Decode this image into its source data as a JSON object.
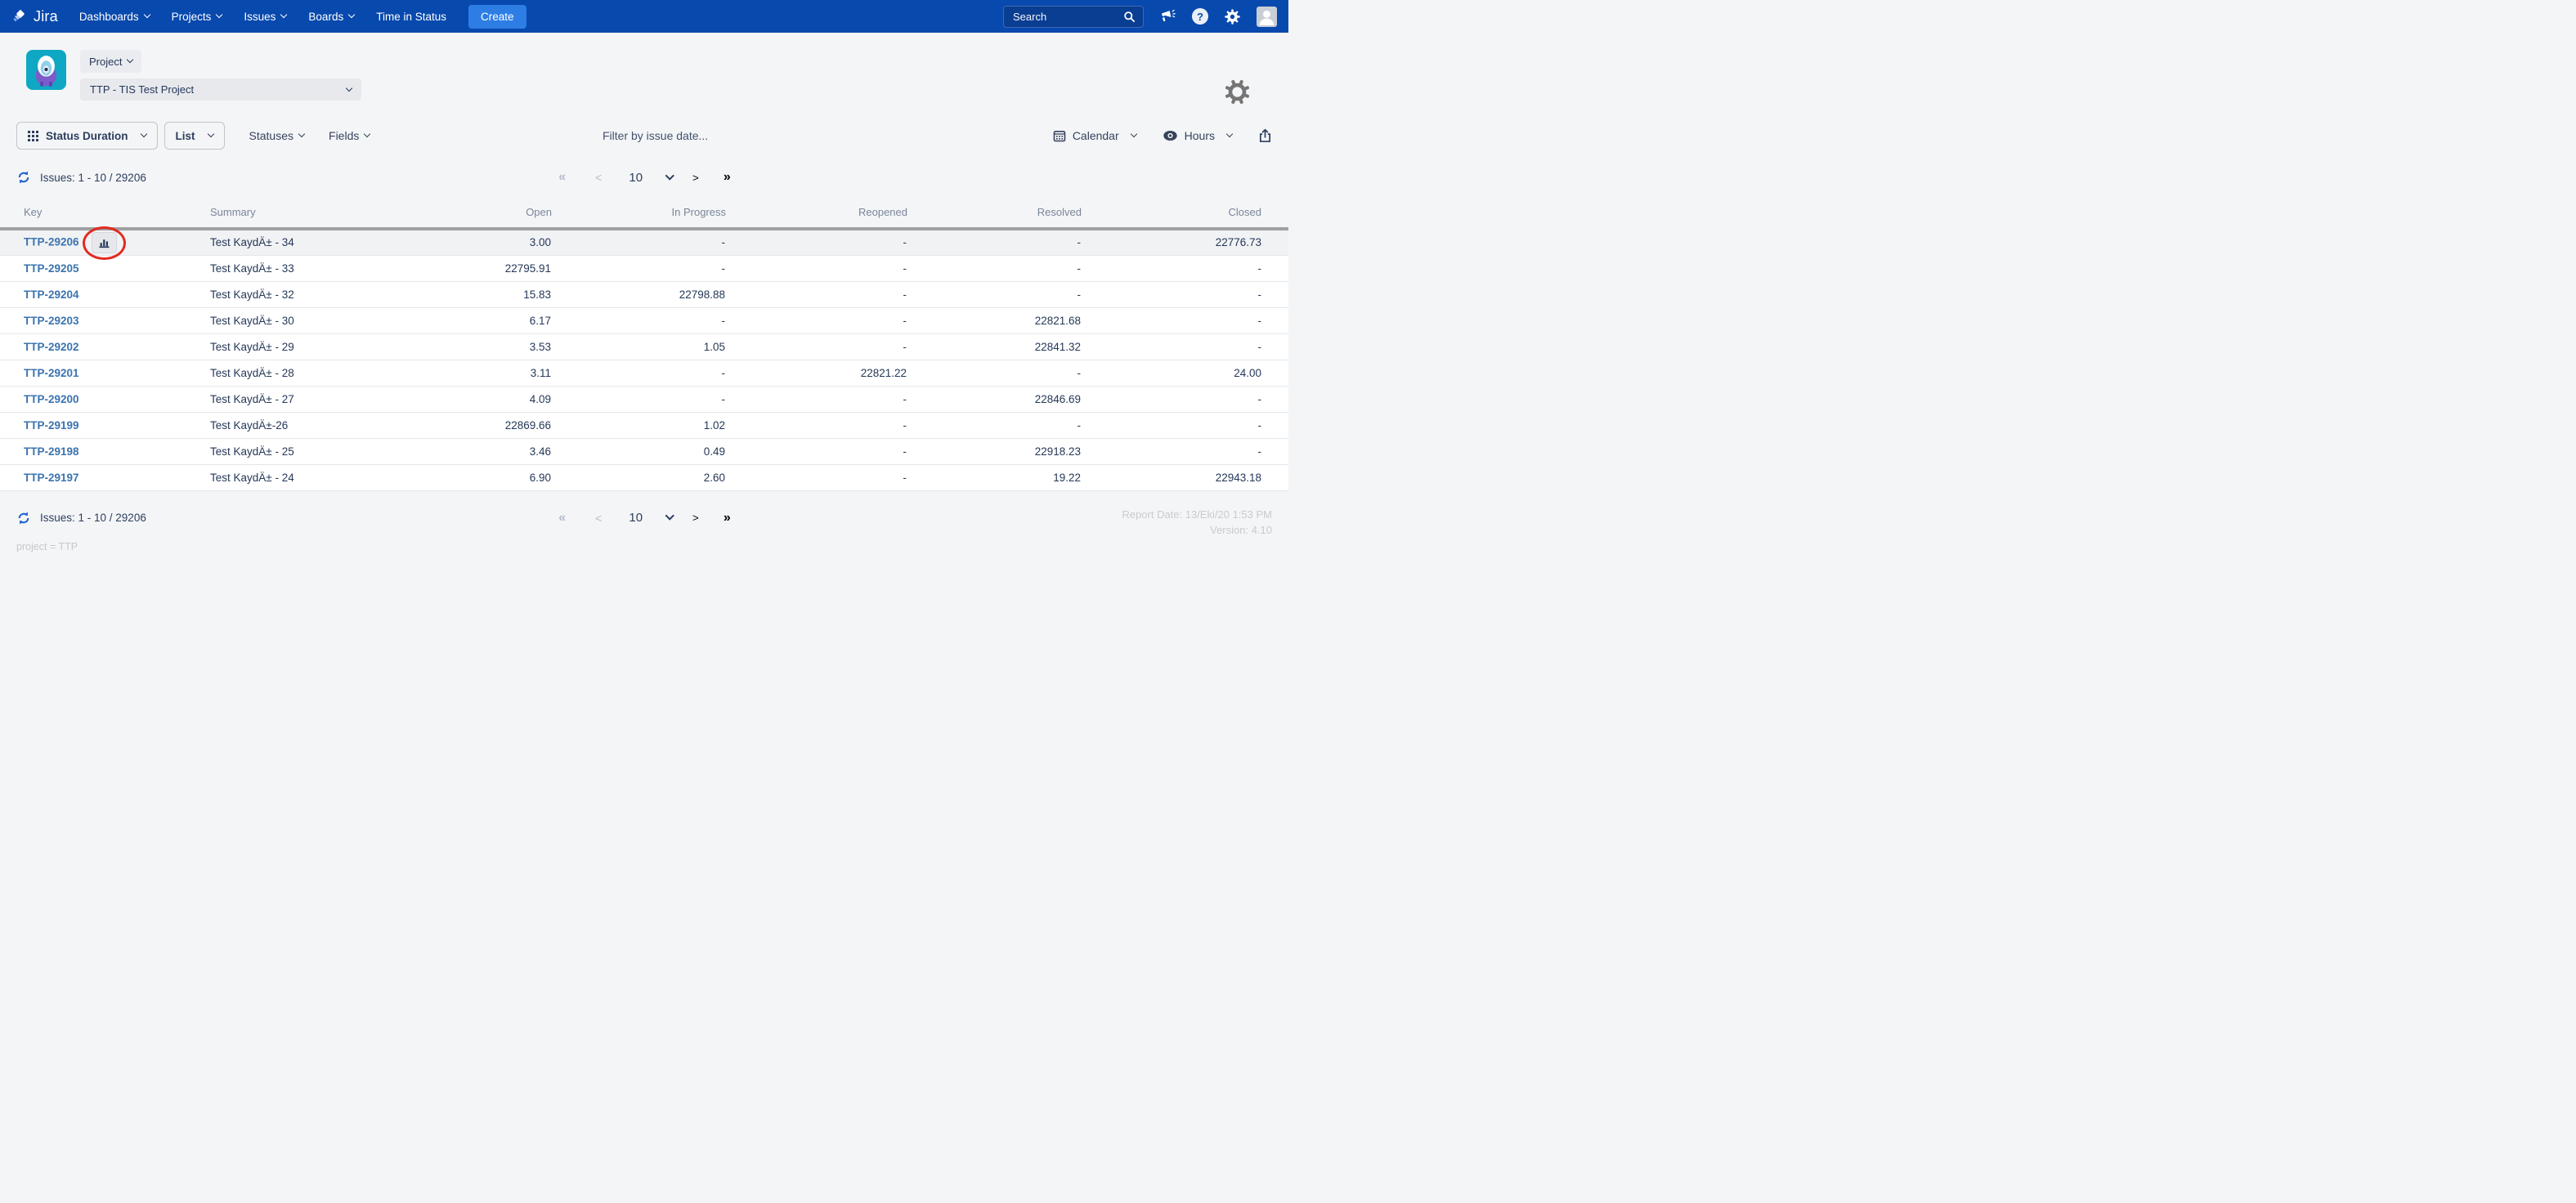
{
  "nav": {
    "brand": "Jira",
    "items": [
      {
        "label": "Dashboards",
        "chevron": true
      },
      {
        "label": "Projects",
        "chevron": true
      },
      {
        "label": "Issues",
        "chevron": true
      },
      {
        "label": "Boards",
        "chevron": true
      },
      {
        "label": "Time in Status",
        "chevron": false
      }
    ],
    "create_label": "Create",
    "search_placeholder": "Search"
  },
  "project": {
    "selector_label": "Project",
    "selected_project": "TTP - TIS Test Project"
  },
  "toolbar": {
    "report_type": "Status Duration",
    "view_label": "List",
    "statuses_label": "Statuses",
    "fields_label": "Fields",
    "filter_placeholder": "Filter by issue date...",
    "calendar_label": "Calendar",
    "hours_label": "Hours"
  },
  "issues": {
    "summary": "Issues: 1 - 10 / 29206"
  },
  "pagination": {
    "first": "«",
    "prev": "<",
    "page_size": "10",
    "next": ">",
    "last": "»"
  },
  "table": {
    "columns": [
      "Key",
      "Summary",
      "Open",
      "In Progress",
      "Reopened",
      "Resolved",
      "Closed"
    ],
    "rows": [
      {
        "key": "TTP-29206",
        "summary": "Test KaydÄ± - 34",
        "open": "3.00",
        "in_progress": "-",
        "reopened": "-",
        "resolved": "-",
        "closed": "22776.73",
        "highlighted": true,
        "chart_button": true
      },
      {
        "key": "TTP-29205",
        "summary": "Test KaydÄ± - 33",
        "open": "22795.91",
        "in_progress": "-",
        "reopened": "-",
        "resolved": "-",
        "closed": "-"
      },
      {
        "key": "TTP-29204",
        "summary": "Test KaydÄ± - 32",
        "open": "15.83",
        "in_progress": "22798.88",
        "reopened": "-",
        "resolved": "-",
        "closed": "-"
      },
      {
        "key": "TTP-29203",
        "summary": "Test KaydÄ± - 30",
        "open": "6.17",
        "in_progress": "-",
        "reopened": "-",
        "resolved": "22821.68",
        "closed": "-"
      },
      {
        "key": "TTP-29202",
        "summary": "Test KaydÄ± - 29",
        "open": "3.53",
        "in_progress": "1.05",
        "reopened": "-",
        "resolved": "22841.32",
        "closed": "-"
      },
      {
        "key": "TTP-29201",
        "summary": "Test KaydÄ± - 28",
        "open": "3.11",
        "in_progress": "-",
        "reopened": "22821.22",
        "resolved": "-",
        "closed": "24.00"
      },
      {
        "key": "TTP-29200",
        "summary": "Test KaydÄ± - 27",
        "open": "4.09",
        "in_progress": "-",
        "reopened": "-",
        "resolved": "22846.69",
        "closed": "-"
      },
      {
        "key": "TTP-29199",
        "summary": "Test KaydÄ±-26",
        "open": "22869.66",
        "in_progress": "1.02",
        "reopened": "-",
        "resolved": "-",
        "closed": "-"
      },
      {
        "key": "TTP-29198",
        "summary": "Test KaydÄ± - 25",
        "open": "3.46",
        "in_progress": "0.49",
        "reopened": "-",
        "resolved": "22918.23",
        "closed": "-"
      },
      {
        "key": "TTP-29197",
        "summary": "Test KaydÄ± - 24",
        "open": "6.90",
        "in_progress": "2.60",
        "reopened": "-",
        "resolved": "19.22",
        "closed": "22943.18"
      }
    ]
  },
  "footer": {
    "report_date": "Report Date: 13/Eki/20 1:53 PM",
    "version": "Version: 4.10",
    "jql": "project = TTP"
  },
  "colors": {
    "navbar_bg": "#0849AD",
    "create_button": "#2E7DE4",
    "link_blue": "#3B73AF",
    "refresh_blue": "#2263D5",
    "annotation_red": "#E12B20",
    "project_avatar_teal": "#0FA8C4"
  }
}
